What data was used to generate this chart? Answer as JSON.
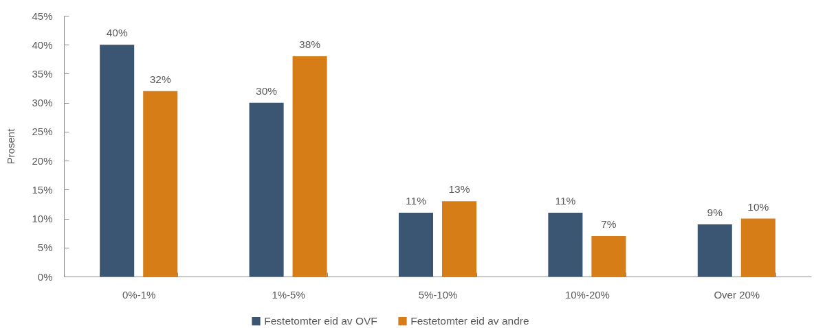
{
  "chart_data": {
    "type": "bar",
    "ylabel": "Prosent",
    "categories": [
      "0%-1%",
      "1%-5%",
      "5%-10%",
      "10%-20%",
      "Over 20%"
    ],
    "series": [
      {
        "name": "Festetomter eid av OVF",
        "color": "#3a5673",
        "values": [
          40,
          30,
          11,
          11,
          9
        ],
        "value_labels": [
          "40%",
          "30%",
          "11%",
          "11%",
          "9%"
        ]
      },
      {
        "name": "Festetomter eid av andre",
        "color": "#d67d17",
        "values": [
          32,
          38,
          13,
          7,
          10
        ],
        "value_labels": [
          "32%",
          "38%",
          "13%",
          "7%",
          "10%"
        ]
      }
    ],
    "ylim": [
      0,
      45
    ],
    "yticks": [
      {
        "value": 0,
        "label": "0%"
      },
      {
        "value": 5,
        "label": "5%"
      },
      {
        "value": 10,
        "label": "10%"
      },
      {
        "value": 15,
        "label": "15%"
      },
      {
        "value": 20,
        "label": "20%"
      },
      {
        "value": 25,
        "label": "25%"
      },
      {
        "value": 30,
        "label": "30%"
      },
      {
        "value": 35,
        "label": "35%"
      },
      {
        "value": 40,
        "label": "40%"
      },
      {
        "value": 45,
        "label": "45%"
      }
    ],
    "grid": false,
    "legend": "bottom"
  }
}
